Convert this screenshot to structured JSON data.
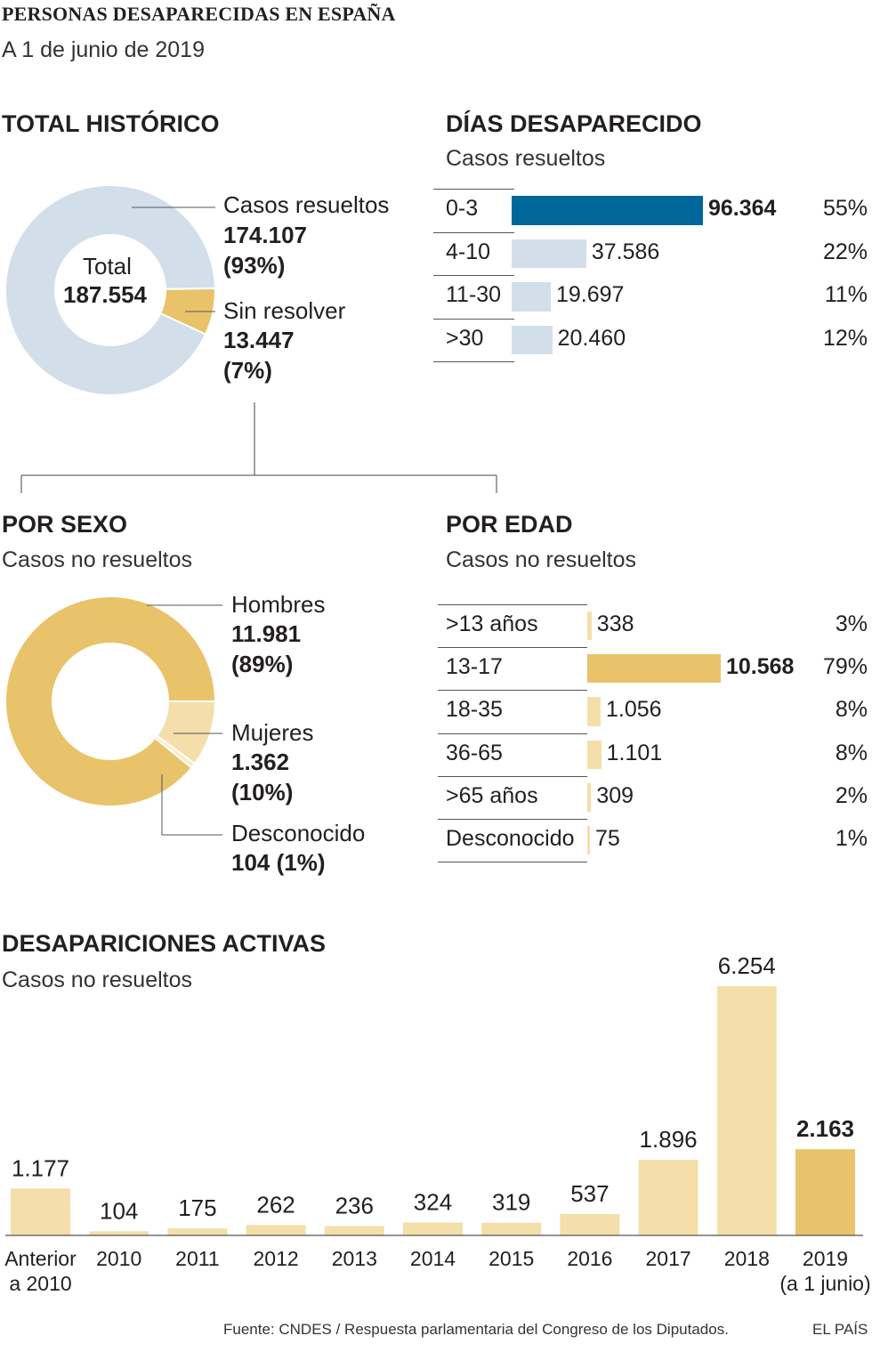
{
  "header": {
    "title": "PERSONAS DESAPARECIDAS EN ESPAÑA",
    "subtitle": "A 1 de junio de 2019"
  },
  "historico": {
    "title": "TOTAL HISTÓRICO",
    "total_label": "Total",
    "total_value": "187.554",
    "resueltos_label": "Casos resueltos",
    "resueltos_value": "174.107",
    "resueltos_pct": "(93%)",
    "sin_resolver_label": "Sin resolver",
    "sin_resolver_value": "13.447",
    "sin_resolver_pct": "(7%)",
    "colors": {
      "resueltos": "#d3deeb",
      "sin_resolver": "#e9c36a"
    }
  },
  "dias": {
    "title": "DÍAS DESAPARECIDO",
    "subtitle": "Casos resueltos",
    "rows": [
      {
        "label": "0-3",
        "value": 96364,
        "text": "96.364",
        "pct": "55%",
        "highlight": true
      },
      {
        "label": "4-10",
        "value": 37586,
        "text": "37.586",
        "pct": "22%",
        "highlight": false
      },
      {
        "label": "11-30",
        "value": 19697,
        "text": "19.697",
        "pct": "11%",
        "highlight": false
      },
      {
        "label": ">30",
        "value": 20460,
        "text": "20.460",
        "pct": "12%",
        "highlight": false
      }
    ],
    "colors": {
      "highlight": "#00679b",
      "normal": "#d3deeb"
    }
  },
  "sexo": {
    "title": "POR SEXO",
    "subtitle": "Casos no resueltos",
    "hombres_label": "Hombres",
    "hombres_value": "11.981",
    "hombres_pct": "(89%)",
    "mujeres_label": "Mujeres",
    "mujeres_value": "1.362",
    "mujeres_pct": "(10%)",
    "desconocido_label": "Desconocido",
    "desconocido_value": "104 (1%)",
    "colors": {
      "hombres": "#e9c36a",
      "mujeres": "#f4dfaa",
      "desconocido": "#f7ebc8"
    }
  },
  "edad": {
    "title": "POR EDAD",
    "subtitle": "Casos no resueltos",
    "rows": [
      {
        "label": ">13 años",
        "value": 338,
        "text": "338",
        "pct": "3%",
        "highlight": false
      },
      {
        "label": "13-17",
        "value": 10568,
        "text": "10.568",
        "pct": "79%",
        "highlight": true
      },
      {
        "label": "18-35",
        "value": 1056,
        "text": "1.056",
        "pct": "8%",
        "highlight": false
      },
      {
        "label": "36-65",
        "value": 1101,
        "text": "1.101",
        "pct": "8%",
        "highlight": false
      },
      {
        "label": ">65 años",
        "value": 309,
        "text": "309",
        "pct": "2%",
        "highlight": false
      },
      {
        "label": "Desconocido",
        "value": 75,
        "text": "75",
        "pct": "1%",
        "highlight": false
      }
    ],
    "colors": {
      "highlight": "#e9c36a",
      "normal": "#f4dfaa"
    }
  },
  "activas": {
    "title": "DESAPARICIONES ACTIVAS",
    "subtitle": "Casos no resueltos",
    "colors": {
      "normal": "#f4dfaa",
      "highlight": "#e9c36a"
    }
  },
  "chart_data": {
    "type": "bar",
    "categories": [
      [
        "Anterior",
        "a 2010"
      ],
      [
        "2010"
      ],
      [
        "2011"
      ],
      [
        "2012"
      ],
      [
        "2013"
      ],
      [
        "2014"
      ],
      [
        "2015"
      ],
      [
        "2016"
      ],
      [
        "2017"
      ],
      [
        "2018"
      ],
      [
        "2019",
        "(a 1 junio)"
      ]
    ],
    "values": [
      1177,
      104,
      175,
      262,
      236,
      324,
      319,
      537,
      1896,
      6254,
      2163
    ],
    "labels": [
      "1.177",
      "104",
      "175",
      "262",
      "236",
      "324",
      "319",
      "537",
      "1.896",
      "6.254",
      "2.163"
    ],
    "highlight_index": 10,
    "title": "DESAPARICIONES ACTIVAS"
  },
  "footer": {
    "source": "Fuente: CNDES / Respuesta parlamentaria del Congreso de los Diputados.",
    "brand": "EL PAÍS"
  }
}
